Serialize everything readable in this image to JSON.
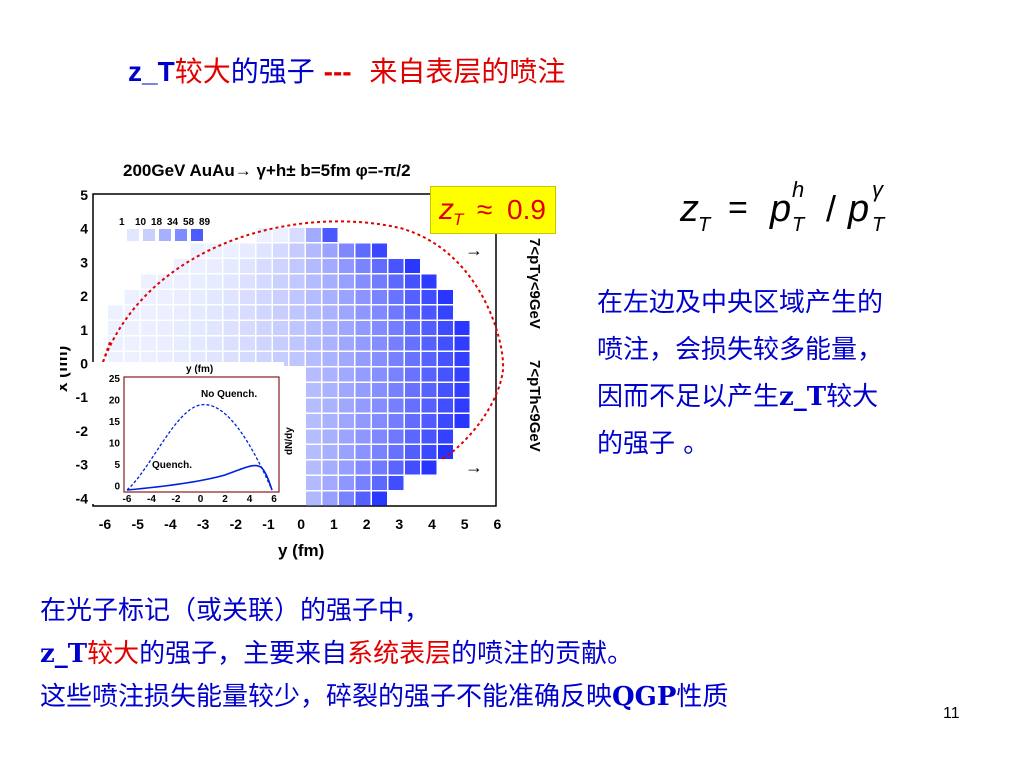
{
  "title": {
    "zt": "z_T",
    "larger": "较大",
    "hadron": "的强子",
    "dashes": "---",
    "surface": "来自表层的喷注"
  },
  "plot": {
    "header": "200GeV  AuAu→ γ+h±  b=5fm  φ=-π/2",
    "xaxis_label": "y (fm)",
    "yaxis_label": "x (fm)",
    "xticks": [
      "-6",
      "-5",
      "-4",
      "-3",
      "-2",
      "-1",
      "0",
      "1",
      "2",
      "3",
      "4",
      "5",
      "6"
    ],
    "yticks": [
      "5",
      "4",
      "3",
      "2",
      "1",
      "0",
      "-1",
      "-2",
      "-3",
      "-4"
    ],
    "scale_labels": [
      "1",
      "10",
      "18",
      "34",
      "58",
      "89"
    ],
    "right_label_1": "7<pTγ<9GeV",
    "right_label_2": "7<pTh<9GeV",
    "inset": {
      "top_label": "y (fm)",
      "ylabel": "dN/dy",
      "yticks": [
        "25",
        "20",
        "15",
        "10",
        "5",
        "0"
      ],
      "xticks": [
        "-6",
        "-4",
        "-2",
        "0",
        "2",
        "4",
        "6"
      ],
      "no_quench": "No Quench.",
      "quench": "Quench."
    }
  },
  "zt_badge": {
    "symbol": "z",
    "sub": "T",
    "approx": "≈",
    "value": "0.9"
  },
  "formula": {
    "lhs": "z",
    "lhs_sub": "T",
    "eq": "=",
    "p": "p",
    "sup_h": "h",
    "sub_T": "T",
    "slash": "/",
    "sup_gamma": "γ"
  },
  "paragraph": {
    "line1": "在左边及中央区域产生的",
    "line2": "喷注，会损失较多能量，",
    "line3_a": "因而不足以产生",
    "line3_b": "z_T",
    "line3_c": "较大",
    "line4": "的强子 。"
  },
  "bottom": {
    "line1": "在光子标记（或关联）的强子中，",
    "line2_a": "z_T",
    "line2_b": "较大",
    "line2_c": "的强子，主要来自",
    "line2_d": "系统表层",
    "line2_e": "的喷注的贡献。",
    "line3_a": "这些喷注损失能量较少，碎裂的强子不能准确反映",
    "line3_b": "QGP",
    "line3_c": "性质"
  },
  "page_number": "11",
  "colors": {
    "text_blue": "#0000cc",
    "accent_red": "#e00000",
    "badge_yellow": "#ffff00"
  }
}
